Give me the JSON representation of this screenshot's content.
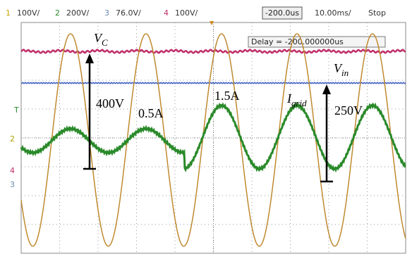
{
  "toolbar": {
    "channels": [
      {
        "number": "1",
        "scale": "100V/"
      },
      {
        "number": "2",
        "scale": "200V/"
      },
      {
        "number": "3",
        "scale": "76.0V/"
      },
      {
        "number": "4",
        "scale": "100V/"
      }
    ],
    "delay_button": "-200.0us",
    "timebase": "10.00ms/",
    "status": "Stop"
  },
  "delay_readout": "Delay = -200.000000us",
  "markers": {
    "trigger": "T",
    "ch2": "2",
    "ch4": "4",
    "ch3": "3"
  },
  "annotations": {
    "vc": {
      "main": "V",
      "sub": "C"
    },
    "vin": {
      "main": "V",
      "sub": "in"
    },
    "igrid": {
      "main": "I",
      "sub": "grid"
    },
    "v400": "400V",
    "a05": "0.5A",
    "a15": "1.5A",
    "v250": "250V"
  }
}
